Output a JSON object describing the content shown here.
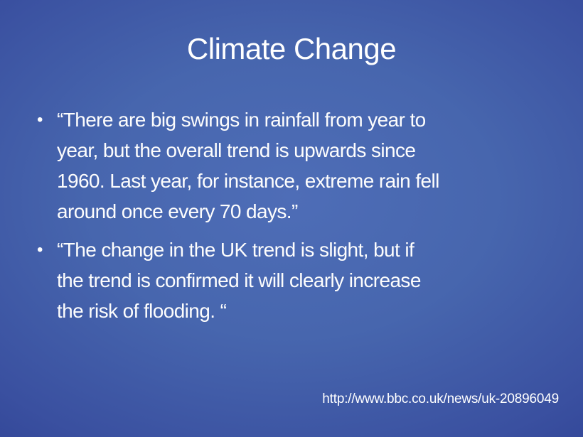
{
  "slide": {
    "title": "Climate Change",
    "bullets": [
      {
        "marker": "•",
        "text": "“There are big swings in rainfall from year to\nyear, but the overall trend is upwards since\n1960. Last year, for instance, extreme rain fell\naround once every 70 days.”"
      },
      {
        "marker": "•",
        "text": "“The change in the UK trend is slight, but if\nthe trend is confirmed it will clearly increase\nthe risk of flooding. “"
      }
    ],
    "footer_url": "http://www.bbc.co.uk/news/uk-20896049",
    "colors": {
      "background_center": "#4d6cb6",
      "background_edge": "#1b2a7a",
      "text": "#ffffff"
    }
  }
}
